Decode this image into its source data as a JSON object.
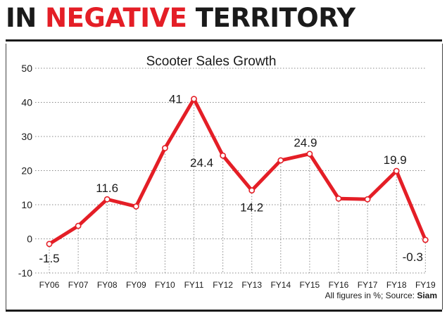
{
  "headline": {
    "part1": "IN ",
    "part2": "NEGATIVE",
    "part3": " TERRITORY"
  },
  "colors": {
    "headline_dark": "#1a1a1a",
    "accent": "#e41e26",
    "line": "#e41e26",
    "grid": "#888888"
  },
  "chart_data": {
    "type": "line",
    "title": "Scooter Sales Growth",
    "categories": [
      "FY06",
      "FY07",
      "FY08",
      "FY09",
      "FY10",
      "FY11",
      "FY12",
      "FY13",
      "FY14",
      "FY15",
      "FY16",
      "FY17",
      "FY18",
      "FY19"
    ],
    "values": [
      -1.5,
      3.8,
      11.6,
      9.5,
      26.6,
      41,
      24.4,
      14.2,
      23.0,
      24.9,
      11.8,
      11.6,
      19.9,
      -0.3
    ],
    "data_labels": [
      {
        "index": 0,
        "text": "-1.5"
      },
      {
        "index": 2,
        "text": "11.6"
      },
      {
        "index": 5,
        "text": "41"
      },
      {
        "index": 6,
        "text": "24.4"
      },
      {
        "index": 7,
        "text": "14.2"
      },
      {
        "index": 9,
        "text": "24.9"
      },
      {
        "index": 12,
        "text": "19.9"
      },
      {
        "index": 13,
        "text": "-0.3"
      }
    ],
    "yticks": [
      50,
      40,
      30,
      20,
      10,
      0,
      -10
    ],
    "ylim": [
      -10,
      50
    ],
    "xlabel": "",
    "ylabel": "",
    "grid": true
  },
  "footnote": {
    "text": "All figures in %; Source: ",
    "source": "Siam"
  }
}
